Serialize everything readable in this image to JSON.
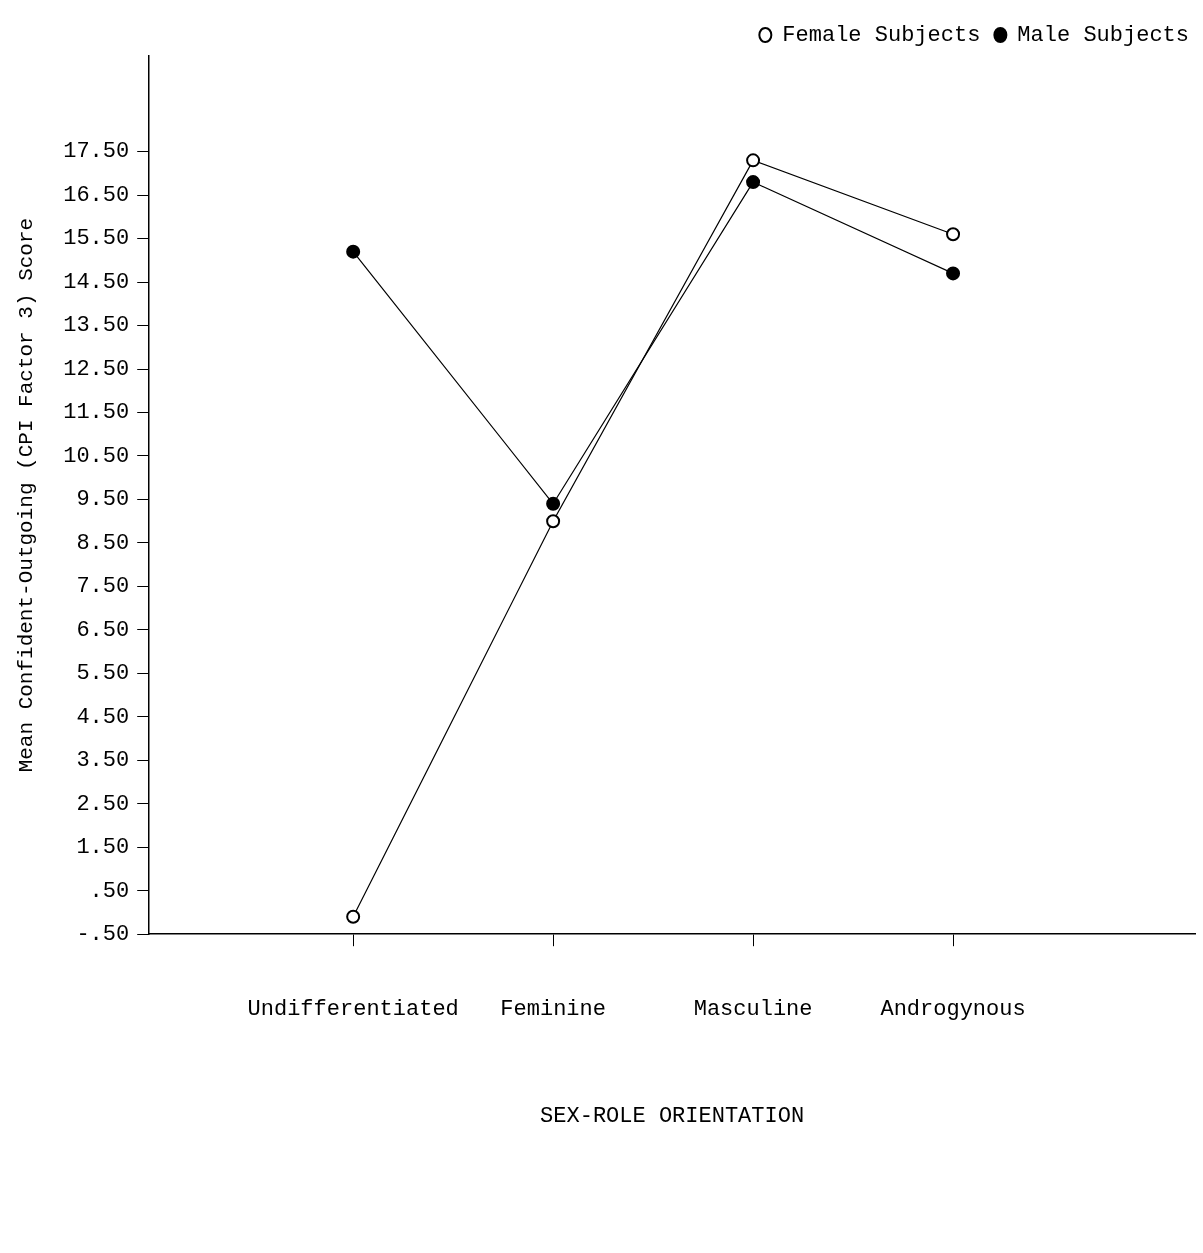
{
  "chart_data": {
    "type": "line",
    "xlabel": "SEX-ROLE ORIENTATION",
    "ylabel": "Mean Confident-Outgoing (CPI Factor 3) Score",
    "categories": [
      "Undifferentiated",
      "Feminine",
      "Masculine",
      "Androgynous"
    ],
    "series": [
      {
        "name": "Female Subjects",
        "color": "#000000",
        "values": [
          -0.1,
          9.0,
          17.3,
          15.6
        ]
      },
      {
        "name": "Male Subjects",
        "color": "#000000",
        "values": [
          15.2,
          9.4,
          16.8,
          14.7
        ]
      }
    ],
    "ylim": [
      -0.5,
      19.7
    ],
    "yticks": [
      {
        "value": -0.5,
        "label": "-.50"
      },
      {
        "value": 0.5,
        "label": ".50"
      },
      {
        "value": 1.5,
        "label": "1.50"
      },
      {
        "value": 2.5,
        "label": "2.50"
      },
      {
        "value": 3.5,
        "label": "3.50"
      },
      {
        "value": 4.5,
        "label": "4.50"
      },
      {
        "value": 5.5,
        "label": "5.50"
      },
      {
        "value": 6.5,
        "label": "6.50"
      },
      {
        "value": 7.5,
        "label": "7.50"
      },
      {
        "value": 8.5,
        "label": "8.50"
      },
      {
        "value": 9.5,
        "label": "9.50"
      },
      {
        "value": 10.5,
        "label": "10.50"
      },
      {
        "value": 11.5,
        "label": "11.50"
      },
      {
        "value": 12.5,
        "label": "12.50"
      },
      {
        "value": 13.5,
        "label": "13.50"
      },
      {
        "value": 14.5,
        "label": "14.50"
      },
      {
        "value": 15.5,
        "label": "15.50"
      },
      {
        "value": 16.5,
        "label": "16.50"
      },
      {
        "value": 17.5,
        "label": "17.50"
      }
    ],
    "legend": "top right",
    "marker": "circle",
    "line_style": "solid",
    "grid": false
  }
}
